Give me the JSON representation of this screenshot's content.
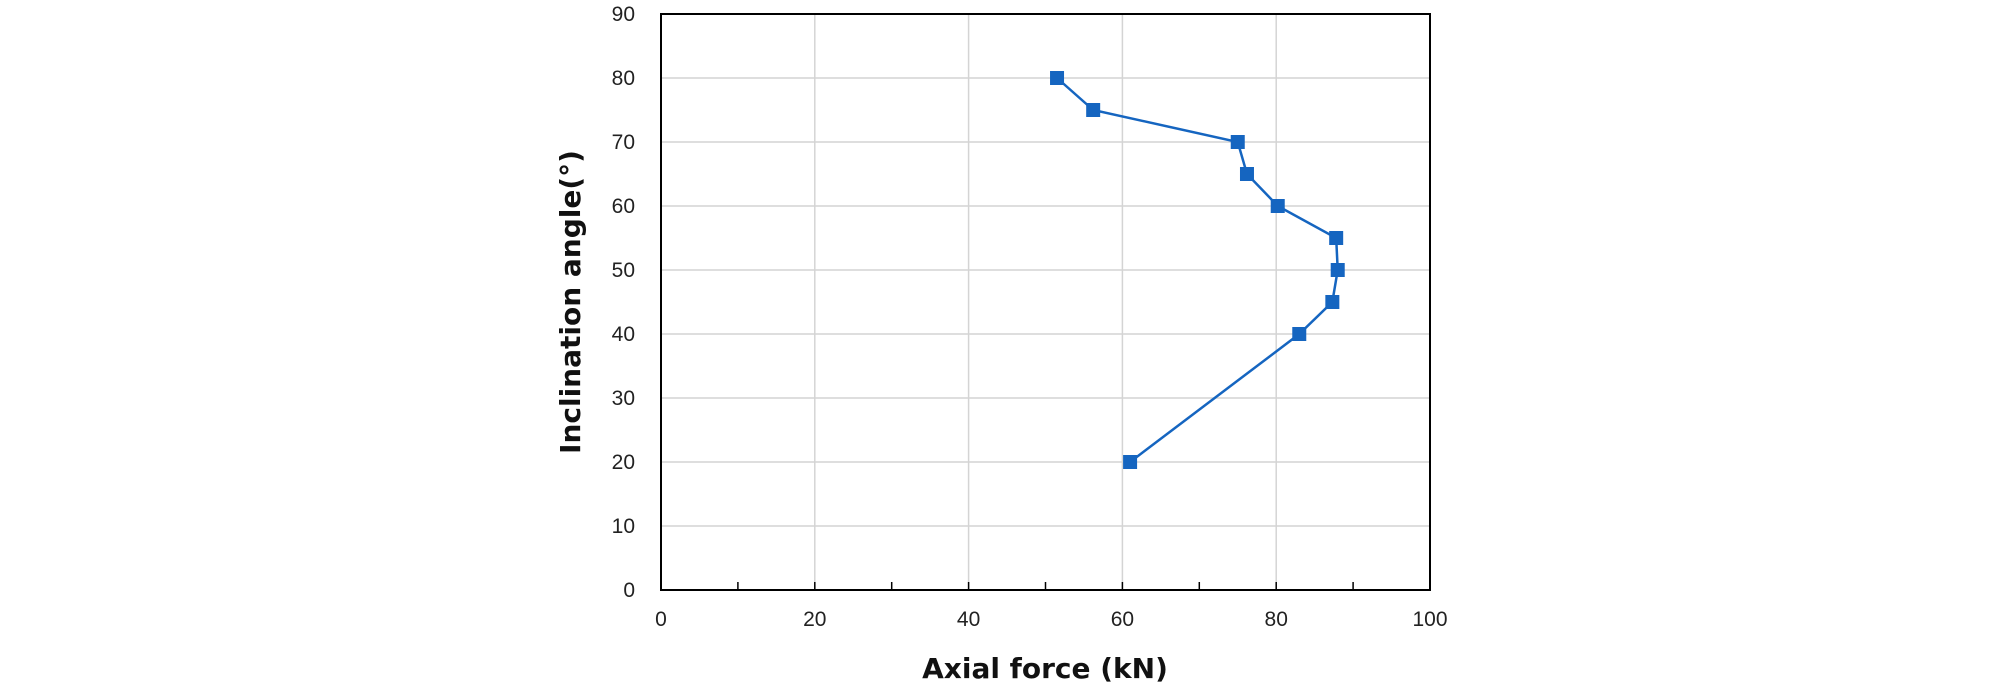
{
  "chart_data": {
    "type": "line",
    "title": "",
    "xlabel": "Axial force (kN)",
    "ylabel": "Inclination angle(°)",
    "xlim": [
      0,
      100
    ],
    "ylim": [
      0,
      90
    ],
    "x_major_ticks": [
      0,
      20,
      40,
      60,
      80,
      100
    ],
    "x_minor_ticks": [
      10,
      30,
      50,
      70,
      90
    ],
    "y_major_ticks": [
      0,
      10,
      20,
      30,
      40,
      50,
      60,
      70,
      80,
      90
    ],
    "x_grid": true,
    "y_grid": true,
    "legend": "none",
    "series": [
      {
        "color": "#1565c0",
        "marker": "square",
        "points": [
          {
            "x": 61.0,
            "y": 20
          },
          {
            "x": 83.0,
            "y": 40
          },
          {
            "x": 87.3,
            "y": 45
          },
          {
            "x": 88.0,
            "y": 50
          },
          {
            "x": 87.8,
            "y": 55
          },
          {
            "x": 80.2,
            "y": 60
          },
          {
            "x": 76.2,
            "y": 65
          },
          {
            "x": 75.0,
            "y": 70
          },
          {
            "x": 56.2,
            "y": 75
          },
          {
            "x": 51.5,
            "y": 80
          }
        ]
      }
    ]
  }
}
